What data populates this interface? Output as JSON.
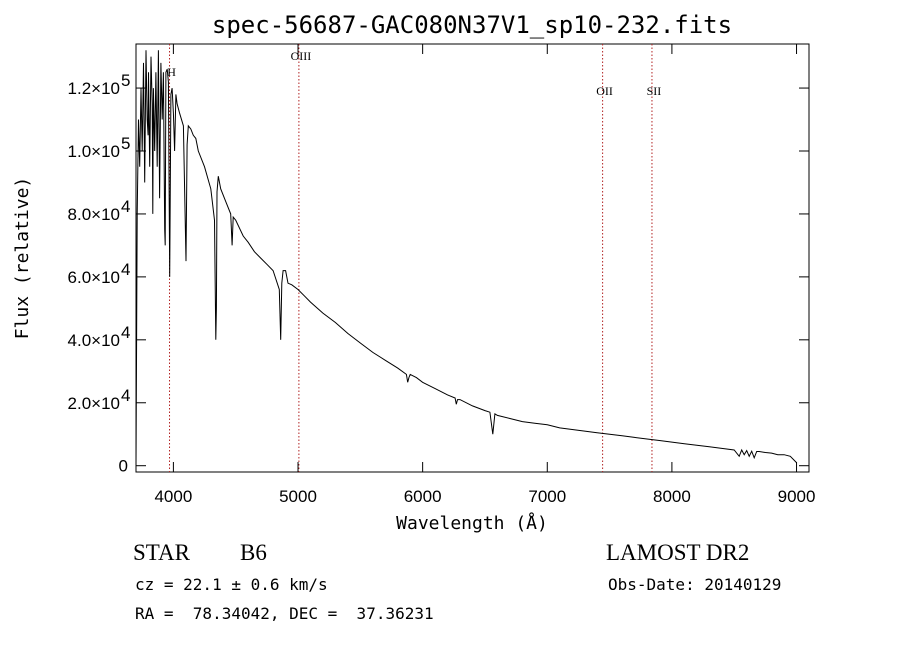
{
  "chart_data": {
    "type": "line",
    "title": "spec-56687-GAC080N37V1_sp10-232.fits",
    "xlabel": "Wavelength (Å)",
    "ylabel": "Flux (relative)",
    "xlim": [
      3700,
      9100
    ],
    "ylim": [
      -2000,
      134000
    ],
    "xticks": [
      {
        "value": 4000,
        "label": "4000"
      },
      {
        "value": 5000,
        "label": "5000"
      },
      {
        "value": 6000,
        "label": "6000"
      },
      {
        "value": 7000,
        "label": "7000"
      },
      {
        "value": 8000,
        "label": "8000"
      },
      {
        "value": 9000,
        "label": "9000"
      }
    ],
    "yticks": [
      {
        "value": 0,
        "mant": "0",
        "exp": ""
      },
      {
        "value": 20000,
        "mant": "2.0×10",
        "exp": "4"
      },
      {
        "value": 40000,
        "mant": "4.0×10",
        "exp": "4"
      },
      {
        "value": 60000,
        "mant": "6.0×10",
        "exp": "4"
      },
      {
        "value": 80000,
        "mant": "8.0×10",
        "exp": "4"
      },
      {
        "value": 100000,
        "mant": "1.0×10",
        "exp": "5"
      },
      {
        "value": 120000,
        "mant": "1.2×10",
        "exp": "5"
      }
    ],
    "lines": [
      {
        "wavelength": 3969,
        "label": "H"
      },
      {
        "wavelength": 5007,
        "label": "OIII"
      },
      {
        "wavelength": 7444,
        "label": "OII"
      },
      {
        "wavelength": 7840,
        "label": "SII"
      }
    ],
    "series": [
      {
        "color": "#000000",
        "x": [
          3700,
          3710,
          3720,
          3730,
          3740,
          3750,
          3760,
          3770,
          3780,
          3790,
          3797,
          3800,
          3810,
          3820,
          3830,
          3835,
          3840,
          3850,
          3860,
          3870,
          3880,
          3889,
          3900,
          3910,
          3920,
          3930,
          3934,
          3940,
          3950,
          3960,
          3970,
          3980,
          3990,
          4000,
          4010,
          4020,
          4030,
          4050,
          4080,
          4101,
          4110,
          4120,
          4140,
          4160,
          4180,
          4200,
          4250,
          4300,
          4330,
          4340,
          4345,
          4350,
          4360,
          4380,
          4420,
          4460,
          4471,
          4480,
          4500,
          4560,
          4600,
          4650,
          4700,
          4750,
          4800,
          4850,
          4861,
          4870,
          4880,
          4900,
          4920,
          4950,
          5000,
          5050,
          5100,
          5200,
          5300,
          5400,
          5500,
          5600,
          5700,
          5800,
          5870,
          5880,
          5890,
          5900,
          5950,
          6000,
          6100,
          6200,
          6260,
          6270,
          6280,
          6300,
          6400,
          6500,
          6540,
          6563,
          6580,
          6600,
          6700,
          6800,
          6900,
          7000,
          7100,
          7200,
          7300,
          7400,
          7500,
          7600,
          7700,
          7800,
          7900,
          8000,
          8100,
          8200,
          8300,
          8400,
          8500,
          8540,
          8560,
          8580,
          8600,
          8620,
          8640,
          8660,
          8680,
          8700,
          8750,
          8800,
          8850,
          8900,
          8950,
          9000
        ],
        "y": [
          0,
          80000,
          110000,
          95000,
          120000,
          100000,
          128000,
          90000,
          132000,
          110000,
          105000,
          125000,
          95000,
          130000,
          115000,
          80000,
          120000,
          100000,
          125000,
          95000,
          132000,
          85000,
          128000,
          110000,
          125000,
          75000,
          70000,
          125000,
          126000,
          122000,
          60000,
          118000,
          120000,
          112000,
          100000,
          118000,
          115000,
          112000,
          108000,
          65000,
          102000,
          108000,
          107000,
          105000,
          104000,
          100000,
          95000,
          88000,
          78000,
          40000,
          50000,
          87000,
          92000,
          88000,
          84000,
          80000,
          70000,
          79000,
          78000,
          73000,
          71000,
          68000,
          66000,
          64000,
          62000,
          56000,
          40000,
          58000,
          62000,
          62000,
          58000,
          57500,
          56000,
          54000,
          52000,
          48500,
          45500,
          42000,
          39000,
          36000,
          33500,
          31000,
          29000,
          26500,
          28000,
          29000,
          28000,
          26500,
          24500,
          22500,
          21500,
          19500,
          21000,
          21000,
          19000,
          17500,
          17000,
          10000,
          16500,
          16000,
          15000,
          14000,
          13500,
          13000,
          12000,
          11500,
          11000,
          10500,
          10000,
          9500,
          9000,
          8500,
          8000,
          7500,
          7000,
          6500,
          6000,
          5500,
          5000,
          3000,
          5000,
          3500,
          4800,
          3000,
          4600,
          2500,
          4500,
          4500,
          4200,
          4000,
          3500,
          3500,
          3000,
          1000
        ]
      }
    ]
  },
  "info": {
    "class_label": "STAR",
    "subclass": "B6",
    "survey": "LAMOST DR2",
    "cz": "cz = 22.1 ± 0.6 km/s",
    "obs_date": "Obs-Date: 20140129",
    "radec": "RA =  78.34042, DEC =  37.36231"
  }
}
